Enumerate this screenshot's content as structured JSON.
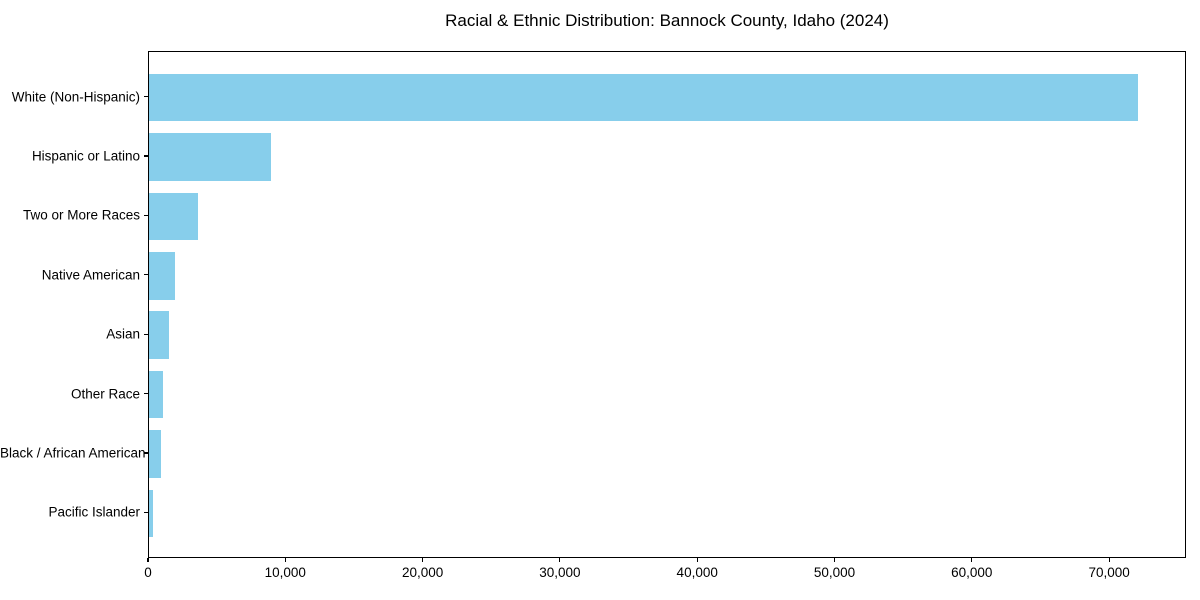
{
  "title": "Racial & Ethnic Distribution: Bannock County, Idaho (2024)",
  "colors": {
    "bar": "#87CEEB",
    "axis": "#000000",
    "background": "#FFFFFF",
    "text": "#000000"
  },
  "chart_data": {
    "type": "bar",
    "orientation": "horizontal",
    "title": "Racial & Ethnic Distribution: Bannock County, Idaho (2024)",
    "categories": [
      "White (Non-Hispanic)",
      "Hispanic or Latino",
      "Two or More Races",
      "Native American",
      "Asian",
      "Other Race",
      "Black / African American",
      "Pacific Islander"
    ],
    "values": [
      72000,
      8900,
      3600,
      1900,
      1450,
      1000,
      900,
      300
    ],
    "xlabel": "",
    "ylabel": "",
    "xlim": [
      0,
      75600
    ],
    "xticks": [
      0,
      10000,
      20000,
      30000,
      40000,
      50000,
      60000,
      70000
    ],
    "xtick_labels": [
      "0",
      "10,000",
      "20,000",
      "30,000",
      "40,000",
      "50,000",
      "60,000",
      "70,000"
    ],
    "bar_color": "#87CEEB",
    "grid": false,
    "legend": null
  }
}
